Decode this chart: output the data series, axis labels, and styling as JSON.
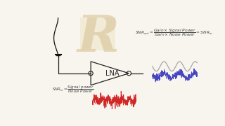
{
  "bg_color": "#f8f5ee",
  "snr_out_text": "$SNR_{out} = \\dfrac{Gain \\times Signal\\ Power}{Gain \\times Noise\\ Power} = SNR_{in}$",
  "snr_in_text": "$SNR_{in} = \\dfrac{Signal\\ power}{Noise\\ Power}$",
  "lna_label": "LNA",
  "signal_color": "#999999",
  "noise_color_in": "#cc1111",
  "noise_color_out": "#3333bb",
  "antenna_color": "#111111",
  "circuit_color": "#222222",
  "formula_color": "#444444",
  "watermark_color": "#e0d0b0",
  "bg_watermark": "#f0e8d0"
}
